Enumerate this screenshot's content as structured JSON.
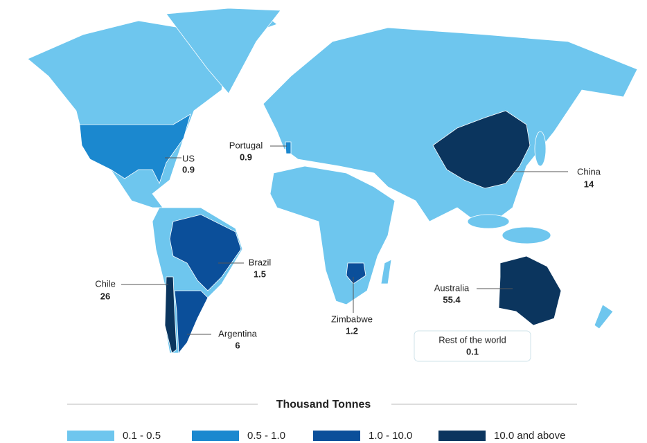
{
  "countries": [
    {
      "name": "US",
      "value": 0.9,
      "color": "#1b88cf"
    },
    {
      "name": "Portugal",
      "value": 0.9,
      "color": "#1b88cf"
    },
    {
      "name": "China",
      "value": 14.0,
      "color": "#0b355e"
    },
    {
      "name": "Brazil",
      "value": 1.5,
      "color": "#0b4f9a"
    },
    {
      "name": "Chile",
      "value": 26.0,
      "color": "#0b355e"
    },
    {
      "name": "Argentina",
      "value": 6.0,
      "color": "#0b4f9a"
    },
    {
      "name": "Zimbabwe",
      "value": 1.2,
      "color": "#0b4f9a"
    },
    {
      "name": "Australia",
      "value": 55.4,
      "color": "#0b355e"
    }
  ],
  "rest_of_world": {
    "name": "Rest of the world",
    "value": 0.1,
    "color": "#6ec6ee"
  },
  "legend": {
    "title": "Thousand Tonnes",
    "items": [
      {
        "label": "0.1 - 0.5",
        "color": "#6ec6ee"
      },
      {
        "label": "0.5 - 1.0",
        "color": "#1b88cf"
      },
      {
        "label": "1.0 - 10.0",
        "color": "#0b4f9a"
      },
      {
        "label": "10.0 and above",
        "color": "#0b355e"
      }
    ]
  }
}
